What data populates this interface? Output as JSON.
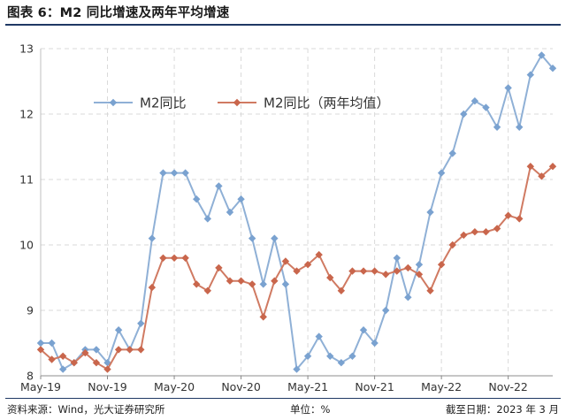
{
  "title": "图表 6：M2 同比增速及两年平均增速",
  "footer": {
    "source": "资料来源：Wind，光大证券研究所",
    "unit": "单位：%",
    "date": "截至日期：2023 年 3 月"
  },
  "colors": {
    "series1": "#8fb0d6",
    "series2": "#d07a62",
    "grid": "#d9d9d9",
    "rule": "#1f3864"
  },
  "chart_data": {
    "type": "line",
    "x": [
      "2019-05",
      "2019-06",
      "2019-07",
      "2019-08",
      "2019-09",
      "2019-10",
      "2019-11",
      "2019-12",
      "2020-01",
      "2020-02",
      "2020-03",
      "2020-04",
      "2020-05",
      "2020-06",
      "2020-07",
      "2020-08",
      "2020-09",
      "2020-10",
      "2020-11",
      "2020-12",
      "2021-01",
      "2021-02",
      "2021-03",
      "2021-04",
      "2021-05",
      "2021-06",
      "2021-07",
      "2021-08",
      "2021-09",
      "2021-10",
      "2021-11",
      "2021-12",
      "2022-01",
      "2022-02",
      "2022-03",
      "2022-04",
      "2022-05",
      "2022-06",
      "2022-07",
      "2022-08",
      "2022-09",
      "2022-10",
      "2022-11",
      "2022-12",
      "2023-01",
      "2023-02",
      "2023-03"
    ],
    "x_tick_labels": [
      "May-19",
      "Nov-19",
      "May-20",
      "Nov-20",
      "May-21",
      "Nov-21",
      "May-22",
      "Nov-22"
    ],
    "x_tick_positions": [
      "2019-05",
      "2019-11",
      "2020-05",
      "2020-11",
      "2021-05",
      "2021-11",
      "2022-05",
      "2022-11"
    ],
    "series": [
      {
        "name": "M2同比",
        "values": [
          8.5,
          8.5,
          8.1,
          8.2,
          8.4,
          8.4,
          8.2,
          8.7,
          8.4,
          8.8,
          10.1,
          11.1,
          11.1,
          11.1,
          10.7,
          10.4,
          10.9,
          10.5,
          10.7,
          10.1,
          9.4,
          10.1,
          9.4,
          8.1,
          8.3,
          8.6,
          8.3,
          8.2,
          8.3,
          8.7,
          8.5,
          9.0,
          9.8,
          9.2,
          9.7,
          10.5,
          11.1,
          11.4,
          12.0,
          12.2,
          12.1,
          11.8,
          12.4,
          11.8,
          12.6,
          12.9,
          12.7
        ]
      },
      {
        "name": "M2同比（两年均值）",
        "values": [
          8.4,
          8.25,
          8.3,
          8.2,
          8.35,
          8.2,
          8.1,
          8.4,
          8.4,
          8.4,
          9.35,
          9.8,
          9.8,
          9.8,
          9.4,
          9.3,
          9.65,
          9.45,
          9.45,
          9.4,
          8.9,
          9.45,
          9.75,
          9.6,
          9.7,
          9.85,
          9.5,
          9.3,
          9.6,
          9.6,
          9.6,
          9.55,
          9.6,
          9.65,
          9.55,
          9.3,
          9.7,
          10.0,
          10.15,
          10.2,
          10.2,
          10.25,
          10.45,
          10.4,
          11.2,
          11.05,
          11.2
        ]
      }
    ],
    "y_ticks": [
      8,
      9,
      10,
      11,
      12,
      13
    ],
    "ylim": [
      8,
      13
    ],
    "grid": true,
    "legend_position": "top-left"
  }
}
